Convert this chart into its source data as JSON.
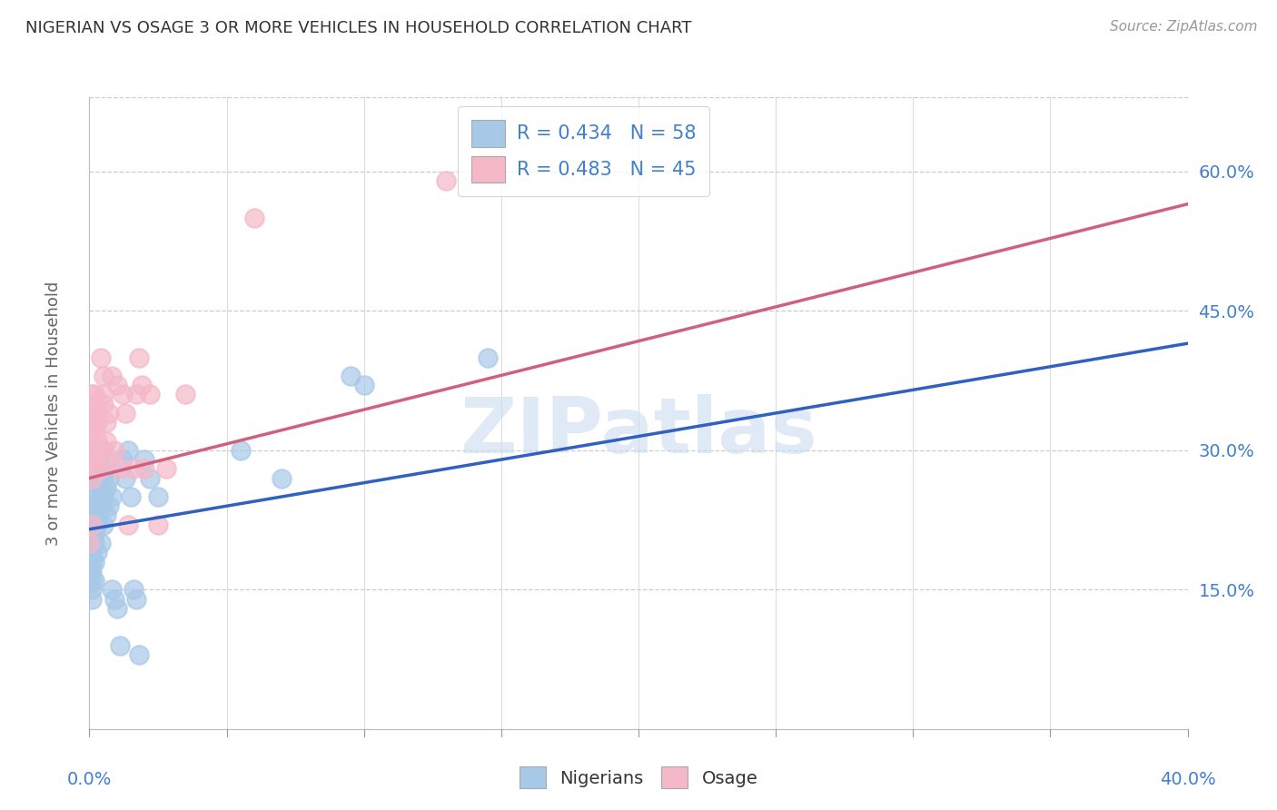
{
  "title": "NIGERIAN VS OSAGE 3 OR MORE VEHICLES IN HOUSEHOLD CORRELATION CHART",
  "source": "Source: ZipAtlas.com",
  "ylabel": "3 or more Vehicles in Household",
  "right_ytick_vals": [
    0.15,
    0.3,
    0.45,
    0.6
  ],
  "watermark": "ZIPatlas",
  "legend_blue_label": "R = 0.434   N = 58",
  "legend_pink_label": "R = 0.483   N = 45",
  "blue_scatter_color": "#a8c8e8",
  "pink_scatter_color": "#f4b8c8",
  "blue_line_color": "#3060c0",
  "pink_line_color": "#d06080",
  "title_color": "#333333",
  "axis_label_color": "#4080d0",
  "legend_text_color": "#4080d0",
  "grid_color": "#cccccc",
  "background_color": "#ffffff",
  "nigerian_x": [
    0.0,
    0.0,
    0.001,
    0.001,
    0.001,
    0.001,
    0.001,
    0.001,
    0.001,
    0.001,
    0.001,
    0.001,
    0.002,
    0.002,
    0.002,
    0.002,
    0.002,
    0.002,
    0.002,
    0.002,
    0.003,
    0.003,
    0.003,
    0.003,
    0.003,
    0.004,
    0.004,
    0.004,
    0.004,
    0.005,
    0.005,
    0.005,
    0.005,
    0.006,
    0.006,
    0.006,
    0.007,
    0.007,
    0.008,
    0.008,
    0.009,
    0.01,
    0.011,
    0.012,
    0.013,
    0.014,
    0.015,
    0.016,
    0.017,
    0.018,
    0.02,
    0.022,
    0.025,
    0.055,
    0.07,
    0.095,
    0.1,
    0.145
  ],
  "nigerian_y": [
    0.2,
    0.22,
    0.18,
    0.19,
    0.17,
    0.21,
    0.16,
    0.23,
    0.15,
    0.24,
    0.19,
    0.14,
    0.2,
    0.22,
    0.24,
    0.18,
    0.16,
    0.25,
    0.27,
    0.21,
    0.19,
    0.26,
    0.24,
    0.23,
    0.22,
    0.2,
    0.28,
    0.26,
    0.24,
    0.3,
    0.22,
    0.27,
    0.25,
    0.23,
    0.28,
    0.26,
    0.24,
    0.27,
    0.25,
    0.15,
    0.14,
    0.13,
    0.09,
    0.29,
    0.27,
    0.3,
    0.25,
    0.15,
    0.14,
    0.08,
    0.29,
    0.27,
    0.25,
    0.3,
    0.27,
    0.38,
    0.37,
    0.4
  ],
  "osage_x": [
    0.0,
    0.001,
    0.001,
    0.001,
    0.001,
    0.001,
    0.001,
    0.001,
    0.002,
    0.002,
    0.002,
    0.002,
    0.002,
    0.003,
    0.003,
    0.003,
    0.003,
    0.004,
    0.004,
    0.004,
    0.005,
    0.005,
    0.005,
    0.006,
    0.006,
    0.007,
    0.007,
    0.008,
    0.009,
    0.01,
    0.011,
    0.012,
    0.013,
    0.014,
    0.016,
    0.017,
    0.018,
    0.019,
    0.02,
    0.022,
    0.025,
    0.028,
    0.035,
    0.06,
    0.13
  ],
  "osage_y": [
    0.2,
    0.22,
    0.32,
    0.33,
    0.3,
    0.36,
    0.34,
    0.27,
    0.3,
    0.35,
    0.28,
    0.32,
    0.36,
    0.31,
    0.33,
    0.29,
    0.34,
    0.3,
    0.28,
    0.4,
    0.35,
    0.36,
    0.38,
    0.31,
    0.33,
    0.29,
    0.34,
    0.38,
    0.3,
    0.37,
    0.28,
    0.36,
    0.34,
    0.22,
    0.28,
    0.36,
    0.4,
    0.37,
    0.28,
    0.36,
    0.22,
    0.28,
    0.36,
    0.55,
    0.59
  ],
  "xlim": [
    0.0,
    0.4
  ],
  "ylim": [
    0.0,
    0.68
  ],
  "blue_trend_x": [
    0.0,
    0.4
  ],
  "blue_trend_y": [
    0.215,
    0.415
  ],
  "pink_trend_x": [
    0.0,
    0.4
  ],
  "pink_trend_y": [
    0.27,
    0.565
  ]
}
